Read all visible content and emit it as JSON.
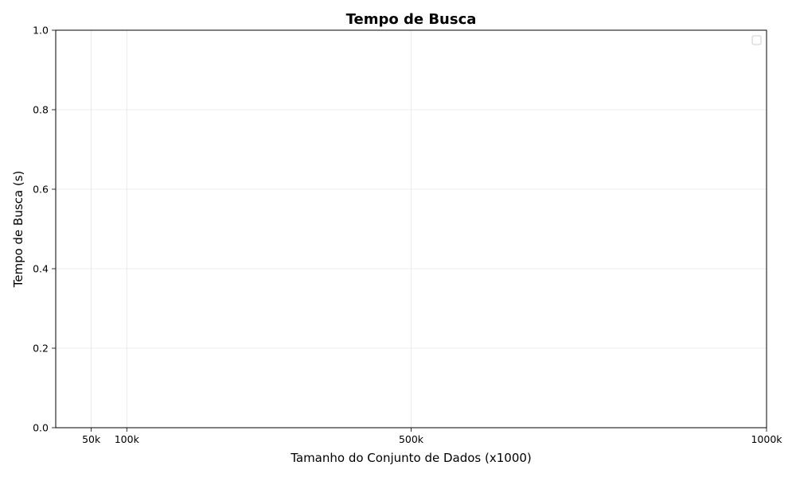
{
  "chart_data": {
    "type": "line",
    "title": "Tempo de Busca",
    "xlabel": "Tamanho do Conjunto de Dados (x1000)",
    "ylabel": "Tempo de Busca (s)",
    "x_ticks": [
      {
        "value": 50,
        "label": "50k"
      },
      {
        "value": 100,
        "label": "100k"
      },
      {
        "value": 500,
        "label": "500k"
      },
      {
        "value": 1000,
        "label": "1000k"
      }
    ],
    "y_ticks": [
      {
        "value": 0.0,
        "label": "0.0"
      },
      {
        "value": 0.2,
        "label": "0.2"
      },
      {
        "value": 0.4,
        "label": "0.4"
      },
      {
        "value": 0.6,
        "label": "0.6"
      },
      {
        "value": 0.8,
        "label": "0.8"
      },
      {
        "value": 1.0,
        "label": "1.0"
      }
    ],
    "xlim": [
      0,
      1000
    ],
    "ylim": [
      0,
      1
    ],
    "grid": true,
    "legend_position": "top-right",
    "series": []
  }
}
